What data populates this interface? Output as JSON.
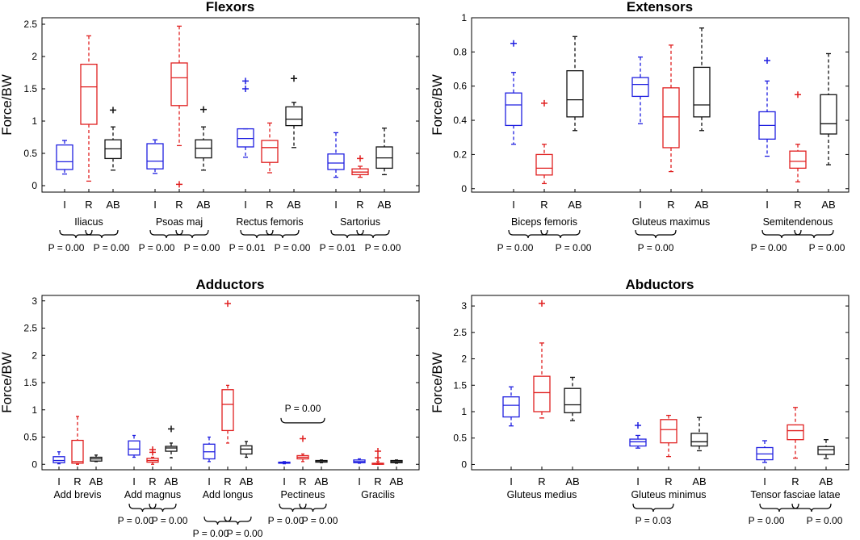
{
  "chart_data": [
    {
      "type": "boxplot",
      "title": "Flexors",
      "ylabel": "Force/BW",
      "ylim": [
        -0.1,
        2.6
      ],
      "yticks": [
        0,
        0.5,
        1,
        1.5,
        2,
        2.5
      ],
      "yticklabels": [
        "0",
        "0.5",
        "1",
        "1.5",
        "2",
        "2.5"
      ],
      "groups": [
        {
          "name": "Iliacus",
          "boxes": [
            {
              "cat": "I",
              "color": "#1f1fe0",
              "min": 0.18,
              "q1": 0.25,
              "med": 0.37,
              "q3": 0.63,
              "max": 0.7,
              "outliers": []
            },
            {
              "cat": "R",
              "color": "#e01f1f",
              "min": 0.07,
              "q1": 0.95,
              "med": 1.53,
              "q3": 1.88,
              "max": 2.32,
              "outliers": []
            },
            {
              "cat": "AB",
              "color": "#111111",
              "min": 0.24,
              "q1": 0.42,
              "med": 0.57,
              "q3": 0.71,
              "max": 0.91,
              "outliers": [
                1.17
              ]
            }
          ]
        },
        {
          "name": "Psoas maj",
          "boxes": [
            {
              "cat": "I",
              "color": "#1f1fe0",
              "min": 0.19,
              "q1": 0.26,
              "med": 0.38,
              "q3": 0.65,
              "max": 0.71,
              "outliers": []
            },
            {
              "cat": "R",
              "color": "#e01f1f",
              "min": 0.62,
              "q1": 1.24,
              "med": 1.67,
              "q3": 1.9,
              "max": 2.47,
              "outliers": [
                0.02
              ]
            },
            {
              "cat": "AB",
              "color": "#111111",
              "min": 0.24,
              "q1": 0.43,
              "med": 0.58,
              "q3": 0.71,
              "max": 0.91,
              "outliers": [
                1.18
              ]
            }
          ]
        },
        {
          "name": "Rectus femoris",
          "boxes": [
            {
              "cat": "I",
              "color": "#1f1fe0",
              "min": 0.44,
              "q1": 0.6,
              "med": 0.73,
              "q3": 0.88,
              "max": 0.88,
              "outliers": [
                1.5,
                1.62
              ]
            },
            {
              "cat": "R",
              "color": "#e01f1f",
              "min": 0.2,
              "q1": 0.36,
              "med": 0.59,
              "q3": 0.7,
              "max": 0.97,
              "outliers": []
            },
            {
              "cat": "AB",
              "color": "#111111",
              "min": 0.59,
              "q1": 0.93,
              "med": 1.03,
              "q3": 1.22,
              "max": 1.29,
              "outliers": [
                1.66
              ]
            }
          ]
        },
        {
          "name": "Sartorius",
          "boxes": [
            {
              "cat": "I",
              "color": "#1f1fe0",
              "min": 0.13,
              "q1": 0.25,
              "med": 0.35,
              "q3": 0.49,
              "max": 0.82,
              "outliers": []
            },
            {
              "cat": "R",
              "color": "#e01f1f",
              "min": 0.13,
              "q1": 0.17,
              "med": 0.21,
              "q3": 0.26,
              "max": 0.3,
              "outliers": [
                0.42
              ]
            },
            {
              "cat": "AB",
              "color": "#111111",
              "min": 0.17,
              "q1": 0.27,
              "med": 0.43,
              "q3": 0.6,
              "max": 0.89,
              "outliers": []
            }
          ]
        }
      ],
      "pvals": [
        {
          "group": 0,
          "labels": [
            "P = 0.00",
            "P = 0.00"
          ]
        },
        {
          "group": 1,
          "labels": [
            "P = 0.00",
            "P = 0.00"
          ]
        },
        {
          "group": 2,
          "labels": [
            "P = 0.01",
            "P = 0.00"
          ]
        },
        {
          "group": 3,
          "labels": [
            "P = 0.01",
            "P = 0.00"
          ]
        }
      ]
    },
    {
      "type": "boxplot",
      "title": "Extensors",
      "ylabel": "Force/BW",
      "ylim": [
        -0.02,
        1.0
      ],
      "yticks": [
        0,
        0.2,
        0.4,
        0.6,
        0.8,
        1
      ],
      "yticklabels": [
        "0",
        "0.2",
        "0.4",
        "0.6",
        "0.8",
        "1"
      ],
      "groups": [
        {
          "name": "Biceps femoris",
          "boxes": [
            {
              "cat": "I",
              "color": "#1f1fe0",
              "min": 0.26,
              "q1": 0.37,
              "med": 0.49,
              "q3": 0.56,
              "max": 0.68,
              "outliers": [
                0.85
              ]
            },
            {
              "cat": "R",
              "color": "#e01f1f",
              "min": 0.03,
              "q1": 0.08,
              "med": 0.12,
              "q3": 0.2,
              "max": 0.26,
              "outliers": [
                0.5
              ]
            },
            {
              "cat": "AB",
              "color": "#111111",
              "min": 0.34,
              "q1": 0.42,
              "med": 0.52,
              "q3": 0.69,
              "max": 0.89,
              "outliers": []
            }
          ]
        },
        {
          "name": "Gluteus maximus",
          "boxes": [
            {
              "cat": "I",
              "color": "#1f1fe0",
              "min": 0.38,
              "q1": 0.54,
              "med": 0.61,
              "q3": 0.65,
              "max": 0.77,
              "outliers": []
            },
            {
              "cat": "R",
              "color": "#e01f1f",
              "min": 0.1,
              "q1": 0.24,
              "med": 0.42,
              "q3": 0.59,
              "max": 0.84,
              "outliers": []
            },
            {
              "cat": "AB",
              "color": "#111111",
              "min": 0.34,
              "q1": 0.42,
              "med": 0.49,
              "q3": 0.71,
              "max": 0.94,
              "outliers": []
            }
          ]
        },
        {
          "name": "Semitendenous",
          "boxes": [
            {
              "cat": "I",
              "color": "#1f1fe0",
              "min": 0.19,
              "q1": 0.29,
              "med": 0.37,
              "q3": 0.45,
              "max": 0.63,
              "outliers": [
                0.75
              ]
            },
            {
              "cat": "R",
              "color": "#e01f1f",
              "min": 0.04,
              "q1": 0.12,
              "med": 0.16,
              "q3": 0.22,
              "max": 0.26,
              "outliers": [
                0.55
              ]
            },
            {
              "cat": "AB",
              "color": "#111111",
              "min": 0.14,
              "q1": 0.32,
              "med": 0.38,
              "q3": 0.55,
              "max": 0.79,
              "outliers": []
            }
          ]
        }
      ],
      "pvals": [
        {
          "group": 0,
          "labels": [
            "P = 0.00",
            "P = 0.00"
          ]
        },
        {
          "group": 1,
          "labels": [
            "P = 0.00"
          ]
        },
        {
          "group": 2,
          "labels": [
            "P = 0.00",
            "P = 0.00"
          ]
        }
      ]
    },
    {
      "type": "boxplot",
      "title": "Adductors",
      "ylabel": "Force/BW",
      "ylim": [
        -0.1,
        3.1
      ],
      "yticks": [
        0,
        0.5,
        1,
        1.5,
        2,
        2.5,
        3
      ],
      "yticklabels": [
        "0",
        "0.5",
        "1",
        "1.5",
        "2",
        "2.5",
        "3"
      ],
      "groups": [
        {
          "name": "Add brevis",
          "boxes": [
            {
              "cat": "I",
              "color": "#1f1fe0",
              "min": 0.01,
              "q1": 0.03,
              "med": 0.07,
              "q3": 0.14,
              "max": 0.23,
              "outliers": []
            },
            {
              "cat": "R",
              "color": "#e01f1f",
              "min": 0.0,
              "q1": 0.02,
              "med": 0.05,
              "q3": 0.44,
              "max": 0.88,
              "outliers": []
            },
            {
              "cat": "AB",
              "color": "#111111",
              "min": 0.05,
              "q1": 0.06,
              "med": 0.1,
              "q3": 0.13,
              "max": 0.17,
              "outliers": []
            }
          ]
        },
        {
          "name": "Add magnus",
          "boxes": [
            {
              "cat": "I",
              "color": "#1f1fe0",
              "min": 0.13,
              "q1": 0.17,
              "med": 0.28,
              "q3": 0.43,
              "max": 0.53,
              "outliers": []
            },
            {
              "cat": "R",
              "color": "#e01f1f",
              "min": 0.0,
              "q1": 0.04,
              "med": 0.07,
              "q3": 0.11,
              "max": 0.13,
              "outliers": [
                0.22,
                0.27
              ]
            },
            {
              "cat": "AB",
              "color": "#111111",
              "min": 0.12,
              "q1": 0.24,
              "med": 0.3,
              "q3": 0.33,
              "max": 0.39,
              "outliers": [
                0.65
              ]
            }
          ]
        },
        {
          "name": "Add longus",
          "boxes": [
            {
              "cat": "I",
              "color": "#1f1fe0",
              "min": 0.05,
              "q1": 0.1,
              "med": 0.23,
              "q3": 0.37,
              "max": 0.5,
              "outliers": []
            },
            {
              "cat": "R",
              "color": "#e01f1f",
              "min": 0.39,
              "q1": 0.62,
              "med": 1.1,
              "q3": 1.37,
              "max": 1.45,
              "outliers": [
                2.95
              ]
            },
            {
              "cat": "AB",
              "color": "#111111",
              "min": 0.13,
              "q1": 0.19,
              "med": 0.28,
              "q3": 0.34,
              "max": 0.42,
              "outliers": []
            }
          ]
        },
        {
          "name": "Pectineus",
          "boxes": [
            {
              "cat": "I",
              "color": "#1f1fe0",
              "min": 0.01,
              "q1": 0.02,
              "med": 0.03,
              "q3": 0.04,
              "max": 0.05,
              "outliers": []
            },
            {
              "cat": "R",
              "color": "#e01f1f",
              "min": 0.05,
              "q1": 0.1,
              "med": 0.13,
              "q3": 0.16,
              "max": 0.19,
              "outliers": [
                0.47
              ]
            },
            {
              "cat": "AB",
              "color": "#111111",
              "min": 0.03,
              "q1": 0.04,
              "med": 0.05,
              "q3": 0.07,
              "max": 0.08,
              "outliers": []
            }
          ]
        },
        {
          "name": "Gracilis",
          "boxes": [
            {
              "cat": "I",
              "color": "#1f1fe0",
              "min": 0.02,
              "q1": 0.03,
              "med": 0.05,
              "q3": 0.08,
              "max": 0.1,
              "outliers": []
            },
            {
              "cat": "R",
              "color": "#e01f1f",
              "min": 0.0,
              "q1": 0.0,
              "med": 0.01,
              "q3": 0.02,
              "max": 0.05,
              "outliers": [
                0.12,
                0.24
              ]
            },
            {
              "cat": "AB",
              "color": "#111111",
              "min": 0.02,
              "q1": 0.03,
              "med": 0.05,
              "q3": 0.07,
              "max": 0.08,
              "outliers": []
            }
          ]
        }
      ],
      "pvals": [
        {
          "group": 1,
          "labels": [
            "P = 0.00",
            "P = 0.00"
          ]
        },
        {
          "group": 2,
          "labels": [
            "P = 0.00",
            "P = 0.00"
          ]
        },
        {
          "group": 3,
          "labels": [
            "P = 0.00",
            "P = 0.00"
          ]
        }
      ],
      "top_pval": {
        "group": 3,
        "label": "P = 0.00"
      }
    },
    {
      "type": "boxplot",
      "title": "Abductors",
      "ylabel": "Force/BW",
      "ylim": [
        -0.1,
        3.2
      ],
      "yticks": [
        0,
        0.5,
        1,
        1.5,
        2,
        2.5,
        3
      ],
      "yticklabels": [
        "0",
        "0.5",
        "1",
        "1.5",
        "2",
        "2.5",
        "3"
      ],
      "groups": [
        {
          "name": "Gluteus medius",
          "boxes": [
            {
              "cat": "I",
              "color": "#1f1fe0",
              "min": 0.73,
              "q1": 0.9,
              "med": 1.12,
              "q3": 1.28,
              "max": 1.47,
              "outliers": []
            },
            {
              "cat": "R",
              "color": "#e01f1f",
              "min": 0.88,
              "q1": 1.0,
              "med": 1.36,
              "q3": 1.67,
              "max": 2.3,
              "outliers": [
                3.05
              ]
            },
            {
              "cat": "AB",
              "color": "#111111",
              "min": 0.83,
              "q1": 0.98,
              "med": 1.13,
              "q3": 1.44,
              "max": 1.65,
              "outliers": []
            }
          ]
        },
        {
          "name": "Gluteus minimus",
          "boxes": [
            {
              "cat": "I",
              "color": "#1f1fe0",
              "min": 0.31,
              "q1": 0.35,
              "med": 0.43,
              "q3": 0.48,
              "max": 0.55,
              "outliers": [
                0.74
              ]
            },
            {
              "cat": "R",
              "color": "#e01f1f",
              "min": 0.15,
              "q1": 0.41,
              "med": 0.66,
              "q3": 0.85,
              "max": 0.93,
              "outliers": []
            },
            {
              "cat": "AB",
              "color": "#111111",
              "min": 0.26,
              "q1": 0.35,
              "med": 0.43,
              "q3": 0.59,
              "max": 0.89,
              "outliers": []
            }
          ]
        },
        {
          "name": "Tensor fasciae latae",
          "boxes": [
            {
              "cat": "I",
              "color": "#1f1fe0",
              "min": 0.04,
              "q1": 0.09,
              "med": 0.2,
              "q3": 0.32,
              "max": 0.45,
              "outliers": []
            },
            {
              "cat": "R",
              "color": "#e01f1f",
              "min": 0.12,
              "q1": 0.47,
              "med": 0.64,
              "q3": 0.75,
              "max": 1.08,
              "outliers": []
            },
            {
              "cat": "AB",
              "color": "#111111",
              "min": 0.11,
              "q1": 0.19,
              "med": 0.28,
              "q3": 0.34,
              "max": 0.47,
              "outliers": []
            }
          ]
        }
      ],
      "pvals": [
        {
          "group": 1,
          "labels": [
            "P = 0.03"
          ]
        },
        {
          "group": 2,
          "labels": [
            "P = 0.00",
            "P = 0.00"
          ]
        }
      ]
    }
  ]
}
